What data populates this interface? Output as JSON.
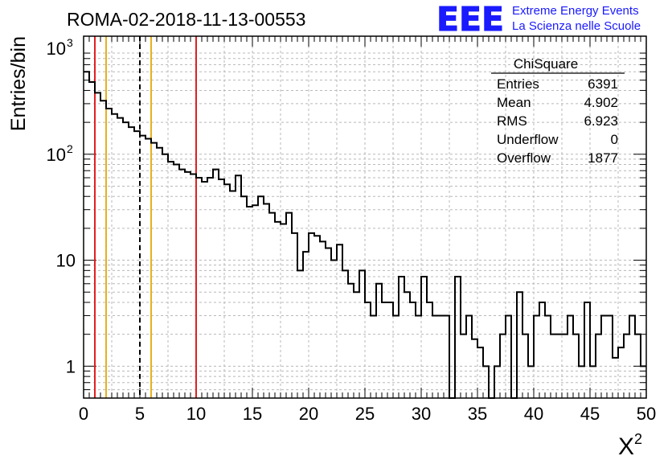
{
  "chart_data": {
    "type": "histogram",
    "title": "ROMA-02-2018-11-13-00553",
    "xlabel": "X",
    "xlabel_superscript": "2",
    "ylabel": "Entries/bin",
    "xlim": [
      0,
      50
    ],
    "ylim": [
      0.5,
      1300
    ],
    "yscale": "log",
    "grid": true,
    "bin_width": 0.5,
    "x_ticks": [
      "0",
      "5",
      "10",
      "15",
      "20",
      "25",
      "30",
      "35",
      "40",
      "45",
      "50"
    ],
    "y_ticks": [
      {
        "value": 1,
        "base": "1",
        "exp": ""
      },
      {
        "value": 10,
        "base": "10",
        "exp": ""
      },
      {
        "value": 100,
        "base": "10",
        "exp": "2"
      },
      {
        "value": 1000,
        "base": "10",
        "exp": "3"
      }
    ],
    "values": [
      600,
      480,
      380,
      320,
      270,
      240,
      220,
      200,
      180,
      165,
      150,
      140,
      128,
      115,
      100,
      85,
      80,
      72,
      68,
      65,
      60,
      55,
      60,
      72,
      58,
      52,
      45,
      63,
      40,
      32,
      33,
      40,
      34,
      28,
      23,
      22,
      28,
      18,
      8,
      12,
      18,
      17,
      15,
      13,
      10,
      14,
      8,
      6,
      5,
      8,
      4,
      3,
      6,
      4,
      4,
      3,
      7,
      5,
      4,
      3,
      7,
      4,
      3,
      3,
      3,
      0.4,
      7,
      2,
      3,
      1.8,
      1.5,
      1,
      0.4,
      1,
      2,
      3,
      0.4,
      5,
      2,
      1,
      3,
      4,
      3,
      2,
      2,
      2,
      3,
      2,
      1,
      4,
      1,
      2,
      3,
      3,
      1.2,
      1.5,
      2,
      3,
      2,
      1
    ],
    "vertical_lines": [
      {
        "x": 1,
        "color": "#e02020",
        "style": "solid"
      },
      {
        "x": 2,
        "color": "#e8b020",
        "style": "solid"
      },
      {
        "x": 5,
        "color": "#000000",
        "style": "dashed"
      },
      {
        "x": 6,
        "color": "#e8b020",
        "style": "solid"
      },
      {
        "x": 10,
        "color": "#e02020",
        "style": "solid"
      }
    ],
    "stats_box": {
      "title": "ChiSquare",
      "rows": [
        {
          "label": "Entries",
          "value": "6391"
        },
        {
          "label": "Mean",
          "value": "4.902"
        },
        {
          "label": "RMS",
          "value": "6.923"
        },
        {
          "label": "Underflow",
          "value": "0"
        },
        {
          "label": "Overflow",
          "value": "1877"
        }
      ]
    }
  },
  "logo": {
    "mark": "EEE",
    "line1": "Extreme Energy Events",
    "line2": "La Scienza nelle Scuole",
    "color": "#1a1aff"
  }
}
